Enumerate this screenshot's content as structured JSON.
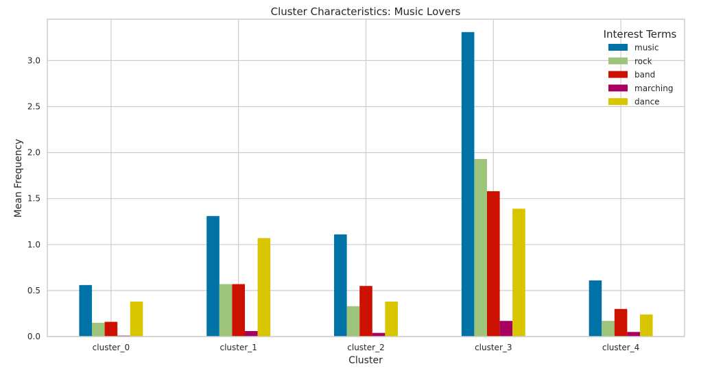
{
  "chart_data": {
    "type": "bar",
    "title": "Cluster Characteristics: Music Lovers",
    "xlabel": "Cluster",
    "ylabel": "Mean Frequency",
    "categories": [
      "cluster_0",
      "cluster_1",
      "cluster_2",
      "cluster_3",
      "cluster_4"
    ],
    "ylim": [
      0,
      3.45
    ],
    "yticks": [
      0.0,
      0.5,
      1.0,
      1.5,
      2.0,
      2.5,
      3.0
    ],
    "ytick_labels": [
      "0.0",
      "0.5",
      "1.0",
      "1.5",
      "2.0",
      "2.5",
      "3.0"
    ],
    "grid": true,
    "legend": {
      "title": "Interest Terms",
      "position": "top-right"
    },
    "series": [
      {
        "name": "music",
        "color": "#0072a6",
        "values": [
          0.56,
          1.31,
          1.11,
          3.31,
          0.61
        ]
      },
      {
        "name": "rock",
        "color": "#9dc47a",
        "values": [
          0.15,
          0.57,
          0.33,
          1.93,
          0.17
        ]
      },
      {
        "name": "band",
        "color": "#cc1100",
        "values": [
          0.16,
          0.57,
          0.55,
          1.58,
          0.3
        ]
      },
      {
        "name": "marching",
        "color": "#a8005e",
        "values": [
          0.01,
          0.06,
          0.04,
          0.17,
          0.05
        ]
      },
      {
        "name": "dance",
        "color": "#d8c500",
        "values": [
          0.38,
          1.07,
          0.38,
          1.39,
          0.24
        ]
      }
    ]
  }
}
